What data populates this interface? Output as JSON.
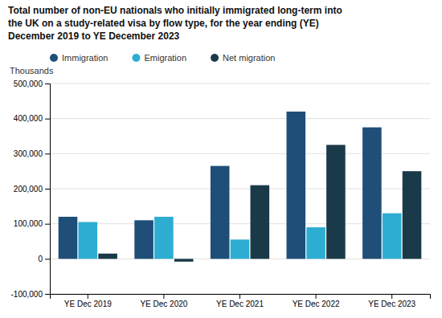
{
  "chart_data": {
    "type": "bar",
    "title": [
      "Total number of non-EU nationals who initially immigrated long-term into",
      "the UK on a study-related visa by flow type, for the year ending (YE)",
      "December 2019 to YE December 2023"
    ],
    "ylabel": "Thousands",
    "categories": [
      "YE Dec 2019",
      "YE Dec 2020",
      "YE Dec 2021",
      "YE Dec 2022",
      "YE Dec 2023"
    ],
    "series": [
      {
        "name": "Immigration",
        "color": "#1f4e79",
        "values": [
          120000,
          110000,
          265000,
          420000,
          375000
        ]
      },
      {
        "name": "Emigration",
        "color": "#2eadd3",
        "values": [
          105000,
          120000,
          55000,
          90000,
          130000
        ]
      },
      {
        "name": "Net migration",
        "color": "#1a3a4a",
        "values": [
          15000,
          -8000,
          210000,
          325000,
          250000
        ]
      }
    ],
    "ylim": [
      -100000,
      500000
    ],
    "yticks": [
      {
        "value": -100000,
        "label": "-100,000"
      },
      0,
      {
        "value": 100000,
        "label": "100,000"
      },
      {
        "value": 200000,
        "label": "200,000"
      },
      {
        "value": 300000,
        "label": "300,000"
      },
      {
        "value": 400000,
        "label": "400,000"
      },
      {
        "value": 500000,
        "label": "500,000"
      }
    ],
    "grid": true,
    "legend": "top"
  }
}
